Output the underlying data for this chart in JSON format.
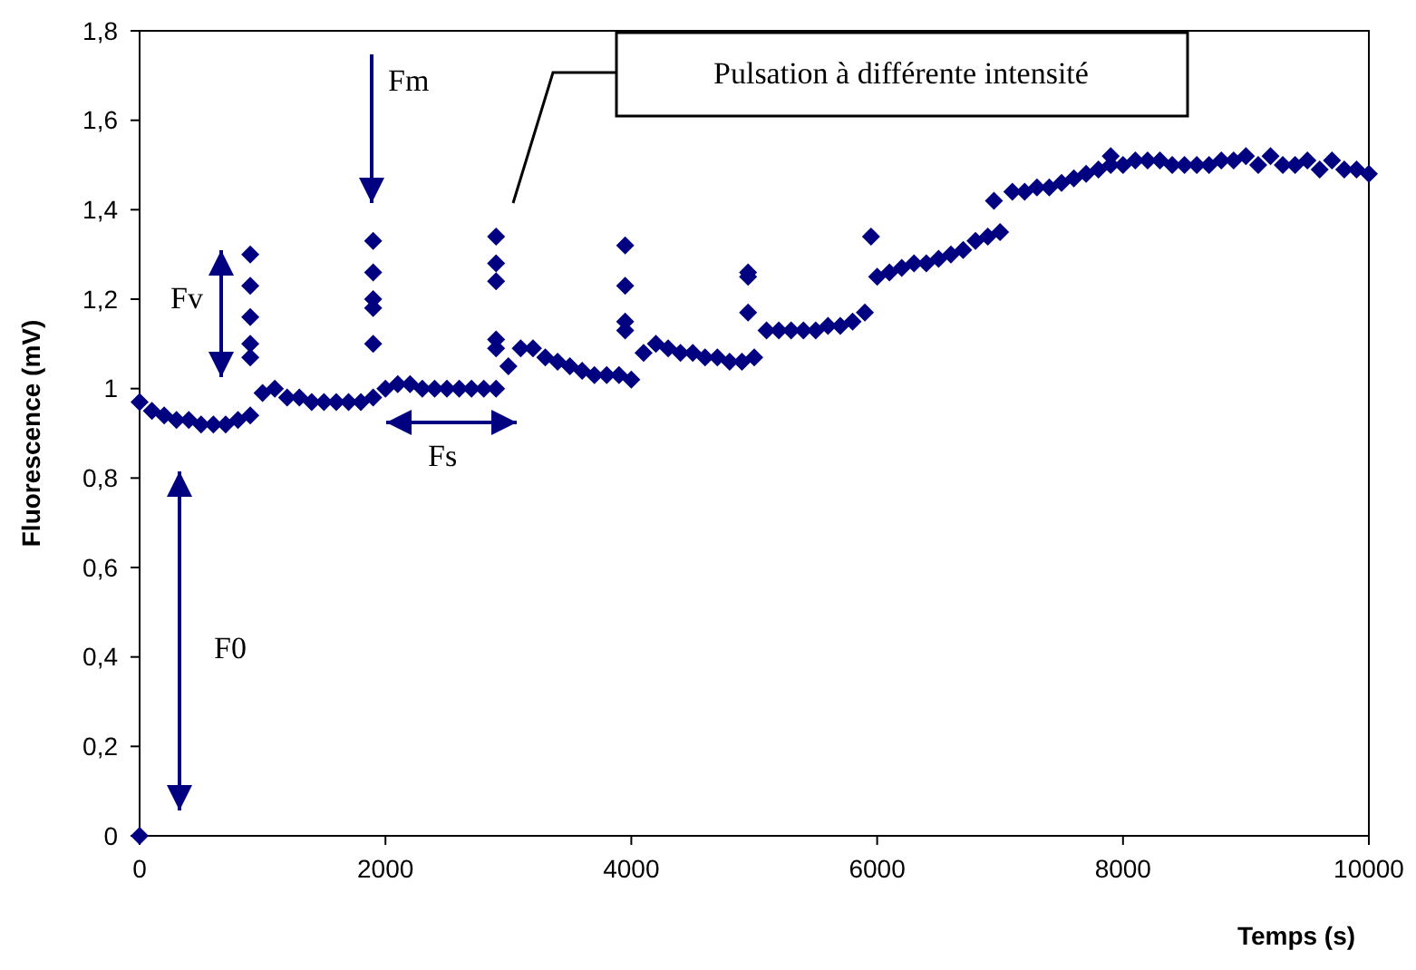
{
  "chart_data": {
    "type": "scatter",
    "xlabel": "Temps (s)",
    "ylabel": "Fluorescence (mV)",
    "xlim": [
      0,
      10000
    ],
    "xticks": [
      0,
      2000,
      4000,
      6000,
      8000,
      10000
    ],
    "ylim": [
      0,
      1.8
    ],
    "yticks": [
      0,
      {
        "value": 0.2,
        "label": "0,2"
      },
      {
        "value": 0.4,
        "label": "0,4"
      },
      {
        "value": 0.6,
        "label": "0,6"
      },
      {
        "value": 0.8,
        "label": "0,8"
      },
      1,
      {
        "value": 1.2,
        "label": "1,2"
      },
      {
        "value": 1.4,
        "label": "1,4"
      },
      {
        "value": 1.6,
        "label": "1,6"
      },
      {
        "value": 1.8,
        "label": "1,8"
      }
    ],
    "grid": false,
    "marker": "diamond",
    "annotations": [
      "Fm",
      "Fv",
      "Fs",
      "F0",
      "Pulsation à différente intensité"
    ],
    "series": [
      {
        "color": "#000080",
        "x": [
          0,
          0,
          100,
          200,
          300,
          400,
          500,
          600,
          700,
          800,
          900,
          1000,
          1100,
          1200,
          1300,
          1400,
          1500,
          1600,
          1700,
          1800,
          1900,
          2000,
          2100,
          2200,
          2300,
          2400,
          2500,
          2600,
          2700,
          2800,
          2900,
          3000,
          3100,
          3200,
          3300,
          3400,
          3500,
          3600,
          3700,
          3800,
          3900,
          4000,
          4100,
          4200,
          4300,
          4400,
          4500,
          4600,
          4700,
          4800,
          4900,
          5000,
          5100,
          5200,
          5300,
          5400,
          5500,
          5600,
          5700,
          5800,
          5900,
          6000,
          6100,
          6200,
          6300,
          6400,
          6500,
          6600,
          6700,
          6800,
          6900,
          7000,
          7100,
          7200,
          7300,
          7400,
          7500,
          7600,
          7700,
          7800,
          7900,
          8000,
          8100,
          8200,
          8300,
          8400,
          8500,
          8600,
          8700,
          8800,
          8900,
          9000,
          9100,
          9200,
          9300,
          9400,
          9500,
          9600,
          9700,
          9800,
          9900,
          10000,
          900,
          900,
          900,
          900,
          900,
          1900,
          1900,
          1900,
          1900,
          1900,
          2900,
          2900,
          2900,
          2900,
          2900,
          3950,
          3950,
          3950,
          3950,
          4950,
          4950,
          4950,
          5950,
          6950,
          7900
        ],
        "values": [
          0,
          0.97,
          0.95,
          0.94,
          0.93,
          0.93,
          0.92,
          0.92,
          0.92,
          0.93,
          0.94,
          0.99,
          1.0,
          0.98,
          0.98,
          0.97,
          0.97,
          0.97,
          0.97,
          0.97,
          0.98,
          1.0,
          1.01,
          1.01,
          1.0,
          1.0,
          1.0,
          1.0,
          1.0,
          1.0,
          1.0,
          1.05,
          1.09,
          1.09,
          1.07,
          1.06,
          1.05,
          1.04,
          1.03,
          1.03,
          1.03,
          1.02,
          1.08,
          1.1,
          1.09,
          1.08,
          1.08,
          1.07,
          1.07,
          1.06,
          1.06,
          1.07,
          1.13,
          1.13,
          1.13,
          1.13,
          1.13,
          1.14,
          1.14,
          1.15,
          1.17,
          1.25,
          1.26,
          1.27,
          1.28,
          1.28,
          1.29,
          1.3,
          1.31,
          1.33,
          1.34,
          1.35,
          1.44,
          1.44,
          1.45,
          1.45,
          1.46,
          1.47,
          1.48,
          1.49,
          1.5,
          1.5,
          1.51,
          1.51,
          1.51,
          1.5,
          1.5,
          1.5,
          1.5,
          1.51,
          1.51,
          1.52,
          1.5,
          1.52,
          1.5,
          1.5,
          1.51,
          1.49,
          1.51,
          1.49,
          1.49,
          1.48,
          1.3,
          1.23,
          1.16,
          1.1,
          1.07,
          1.33,
          1.26,
          1.2,
          1.18,
          1.1,
          1.34,
          1.28,
          1.24,
          1.11,
          1.09,
          1.32,
          1.23,
          1.15,
          1.13,
          1.26,
          1.25,
          1.17,
          1.34,
          1.42,
          1.52
        ]
      }
    ]
  }
}
